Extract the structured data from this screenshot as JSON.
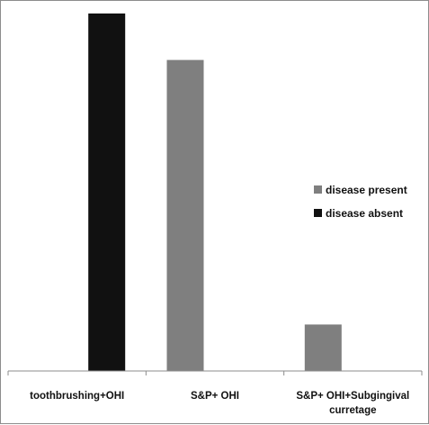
{
  "chart_data": {
    "type": "bar",
    "title": "",
    "xlabel": "",
    "ylabel": "",
    "ylim": [
      0,
      100
    ],
    "grid": false,
    "legend_position": "right",
    "categories": [
      "toothbrushing+OHI",
      "S&P+ OHI",
      "S&P+ OHI+Subgingival curretage"
    ],
    "category_lines": [
      [
        "toothbrushing+OHI"
      ],
      [
        "S&P+ OHI"
      ],
      [
        "S&P+ OHI+Subgingival",
        "curretage"
      ]
    ],
    "series": [
      {
        "name": "disease present",
        "color": "#7f7f7f",
        "values": [
          0,
          87,
          13
        ]
      },
      {
        "name": "disease absent",
        "color": "#111111",
        "values": [
          100,
          0,
          0
        ]
      }
    ]
  }
}
